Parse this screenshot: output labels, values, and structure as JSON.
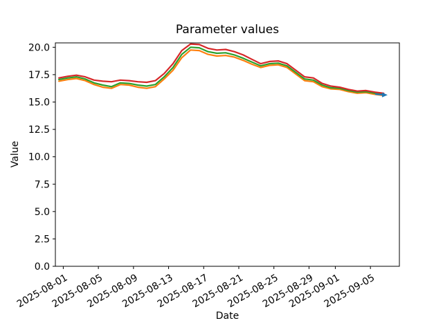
{
  "chart_data": {
    "type": "line",
    "title": "Parameter values",
    "xlabel": "Date",
    "ylabel": "Value",
    "grid": false,
    "legend": false,
    "background": "#ffffff",
    "spine_color": "#000000",
    "ylim": [
      0,
      20.4
    ],
    "x_epoch": "2025-08-01",
    "xlim_days": [
      -0.9,
      38.3
    ],
    "yticks": {
      "values": [
        0,
        2.5,
        5,
        7.5,
        10,
        12.5,
        15,
        17.5,
        20
      ],
      "labels": [
        "0.0",
        "2.5",
        "5.0",
        "7.5",
        "10.0",
        "12.5",
        "15.0",
        "17.5",
        "20.0"
      ]
    },
    "xticks": [
      {
        "label": "2025-08-01",
        "day": 0
      },
      {
        "label": "2025-08-05",
        "day": 4
      },
      {
        "label": "2025-08-09",
        "day": 8
      },
      {
        "label": "2025-08-13",
        "day": 12
      },
      {
        "label": "2025-08-17",
        "day": 16
      },
      {
        "label": "2025-08-21",
        "day": 20
      },
      {
        "label": "2025-08-25",
        "day": 24
      },
      {
        "label": "2025-08-29",
        "day": 28
      },
      {
        "label": "2025-09-01",
        "day": 31
      },
      {
        "label": "2025-09-05",
        "day": 35
      }
    ],
    "dates": [
      "2025-07-31",
      "2025-08-01",
      "2025-08-02",
      "2025-08-03",
      "2025-08-04",
      "2025-08-05",
      "2025-08-06",
      "2025-08-07",
      "2025-08-08",
      "2025-08-09",
      "2025-08-10",
      "2025-08-11",
      "2025-08-12",
      "2025-08-13",
      "2025-08-14",
      "2025-08-15",
      "2025-08-16",
      "2025-08-17",
      "2025-08-18",
      "2025-08-19",
      "2025-08-20",
      "2025-08-21",
      "2025-08-22",
      "2025-08-23",
      "2025-08-24",
      "2025-08-25",
      "2025-08-26",
      "2025-08-27",
      "2025-08-28",
      "2025-08-29",
      "2025-08-30",
      "2025-08-31",
      "2025-09-01",
      "2025-09-02",
      "2025-09-03",
      "2025-09-04",
      "2025-09-05",
      "2025-09-06"
    ],
    "x_days": [
      -0.5,
      0.5,
      1.5,
      2.5,
      3.5,
      4.5,
      5.5,
      6.5,
      7.5,
      8.5,
      9.5,
      10.5,
      11.5,
      12.5,
      13.5,
      14.5,
      15.5,
      16.5,
      17.5,
      18.5,
      19.5,
      20.5,
      21.5,
      22.5,
      23.5,
      24.5,
      25.5,
      26.5,
      27.5,
      28.5,
      29.5,
      30.5,
      31.5,
      32.5,
      33.5,
      34.5,
      35.5,
      36.5
    ],
    "series": [
      {
        "name": "series-orange",
        "color": "#ff7f0e",
        "values": [
          16.9,
          17.05,
          17.15,
          16.95,
          16.6,
          16.35,
          16.25,
          16.6,
          16.55,
          16.35,
          16.25,
          16.4,
          17.1,
          17.9,
          19.05,
          19.75,
          19.7,
          19.35,
          19.2,
          19.25,
          19.1,
          18.8,
          18.45,
          18.15,
          18.35,
          18.4,
          18.15,
          17.55,
          16.95,
          16.85,
          16.4,
          16.2,
          16.15,
          15.95,
          15.8,
          15.85,
          15.7,
          15.6
        ]
      },
      {
        "name": "series-green",
        "color": "#2ca02c",
        "values": [
          17.05,
          17.2,
          17.3,
          17.1,
          16.75,
          16.55,
          16.4,
          16.75,
          16.7,
          16.55,
          16.45,
          16.6,
          17.3,
          18.15,
          19.35,
          20.0,
          19.95,
          19.6,
          19.45,
          19.5,
          19.3,
          19.0,
          18.65,
          18.3,
          18.5,
          18.55,
          18.3,
          17.7,
          17.1,
          17.0,
          16.55,
          16.3,
          16.25,
          16.05,
          15.9,
          15.95,
          15.8,
          15.7
        ]
      },
      {
        "name": "series-red",
        "color": "#d62728",
        "values": [
          17.2,
          17.35,
          17.45,
          17.3,
          17.0,
          16.9,
          16.85,
          17.0,
          16.95,
          16.85,
          16.8,
          16.95,
          17.6,
          18.5,
          19.7,
          20.3,
          20.25,
          19.9,
          19.75,
          19.8,
          19.6,
          19.3,
          18.9,
          18.5,
          18.7,
          18.75,
          18.5,
          17.9,
          17.3,
          17.2,
          16.7,
          16.45,
          16.35,
          16.15,
          16.0,
          16.05,
          15.9,
          15.8
        ]
      },
      {
        "name": "series-blue-end",
        "color": "#1f77b4",
        "x_days": [
          35.6,
          36.6
        ],
        "values": [
          15.72,
          15.65
        ],
        "marker_end": true
      }
    ]
  }
}
